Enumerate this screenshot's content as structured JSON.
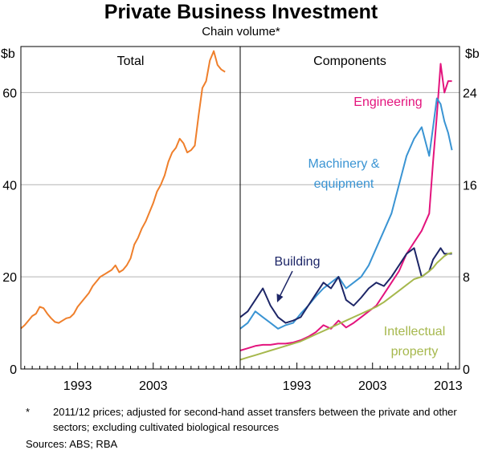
{
  "title": "Private Business Investment",
  "subtitle": "Chain volume*",
  "footnote_mark": "*",
  "footnote": "2011/12 prices; adjusted for second-hand asset transfers between the private and other sectors; excluding cultivated biological resources",
  "sources": "Sources:  ABS; RBA",
  "chart_data": [
    {
      "type": "line",
      "panel_title": "Total",
      "ylabel": "$b",
      "ylim": [
        0,
        70
      ],
      "yticks": [
        0,
        20,
        40,
        60
      ],
      "xlim": [
        1985.5,
        2014.5
      ],
      "xticks": [
        1993,
        2003
      ],
      "xtick_labels": [
        "1993",
        "2003"
      ],
      "grid": true,
      "series": [
        {
          "name": "Total",
          "color": "#ef7f2b",
          "x": [
            1985.5,
            1986,
            1986.5,
            1987,
            1987.5,
            1988,
            1988.5,
            1989,
            1989.5,
            1990,
            1990.5,
            1991,
            1991.5,
            1992,
            1992.5,
            1993,
            1993.5,
            1994,
            1994.5,
            1995,
            1995.5,
            1996,
            1996.5,
            1997,
            1997.5,
            1998,
            1998.5,
            1999,
            1999.5,
            2000,
            2000.5,
            2001,
            2001.5,
            2002,
            2002.5,
            2003,
            2003.5,
            2004,
            2004.5,
            2005,
            2005.5,
            2006,
            2006.5,
            2007,
            2007.5,
            2008,
            2008.5,
            2009,
            2009.5,
            2010,
            2010.5,
            2011,
            2011.5,
            2012,
            2012.5,
            2013,
            2013.5
          ],
          "values": [
            8.8,
            9.5,
            10.5,
            11.5,
            12,
            13.5,
            13.2,
            12,
            11,
            10.2,
            10,
            10.5,
            11,
            11.2,
            12,
            13.5,
            14.5,
            15.5,
            16.5,
            18,
            19,
            20,
            20.5,
            21,
            21.5,
            22.5,
            21,
            21.5,
            22.5,
            24,
            27,
            28.5,
            30.5,
            32,
            34,
            36,
            38.5,
            40,
            42,
            45,
            47,
            48,
            50,
            49,
            47,
            47.5,
            48.5,
            55,
            61,
            62.5,
            67,
            69,
            66,
            65,
            64.5,
            null,
            null
          ]
        }
      ]
    },
    {
      "type": "line",
      "panel_title": "Components",
      "ylabel": "$b",
      "ylim": [
        0,
        28
      ],
      "yticks": [
        0,
        8,
        16,
        24
      ],
      "xlim": [
        1985.5,
        2014.5
      ],
      "xticks": [
        1993,
        2003,
        2013
      ],
      "xtick_labels": [
        "1993",
        "2003",
        "2013"
      ],
      "grid": true,
      "series": [
        {
          "name": "Engineering",
          "color": "#e3147d",
          "x": [
            1985.5,
            1986.5,
            1987.5,
            1988.5,
            1989.5,
            1990.5,
            1991.5,
            1992.5,
            1993.5,
            1994.5,
            1995.5,
            1996.5,
            1997.5,
            1998.5,
            1999.5,
            2000.5,
            2001.5,
            2002.5,
            2003.5,
            2004.5,
            2005.5,
            2006.5,
            2007.5,
            2008.5,
            2009.5,
            2010.5,
            2011,
            2011.5,
            2012,
            2012.5,
            2013,
            2013.5
          ],
          "values": [
            1.6,
            1.8,
            2,
            2.1,
            2.1,
            2.2,
            2.2,
            2.3,
            2.5,
            2.8,
            3.2,
            3.8,
            3.5,
            4.2,
            3.6,
            4,
            4.5,
            5,
            5.5,
            6.5,
            7.5,
            8.5,
            10,
            11,
            12,
            13.5,
            18,
            22,
            26.5,
            24,
            25,
            25
          ]
        },
        {
          "name": "Machinery & equipment",
          "color": "#3a94d3",
          "x": [
            1985.5,
            1986.5,
            1987.5,
            1988.5,
            1989.5,
            1990.5,
            1991.5,
            1992.5,
            1993.5,
            1994.5,
            1995.5,
            1996.5,
            1997.5,
            1998.5,
            1999.5,
            2000.5,
            2001.5,
            2002.5,
            2003.5,
            2004.5,
            2005.5,
            2006.5,
            2007.5,
            2008.5,
            2009.5,
            2010.5,
            2011,
            2011.5,
            2012,
            2012.5,
            2013,
            2013.5
          ],
          "values": [
            3.5,
            4,
            5,
            4.5,
            4,
            3.5,
            3.8,
            4,
            4.8,
            5.5,
            6.3,
            7,
            7.5,
            8,
            7,
            7.5,
            8,
            9,
            10.5,
            12,
            13.5,
            16,
            18.5,
            20,
            21,
            18.5,
            21,
            23.5,
            23,
            21.5,
            20.5,
            19
          ]
        },
        {
          "name": "Building",
          "color": "#1d2667",
          "x": [
            1985.5,
            1986.5,
            1987.5,
            1988.5,
            1989.5,
            1990.5,
            1991.5,
            1992.5,
            1993.5,
            1994.5,
            1995.5,
            1996.5,
            1997.5,
            1998.5,
            1999.5,
            2000.5,
            2001.5,
            2002.5,
            2003.5,
            2004.5,
            2005.5,
            2006.5,
            2007.5,
            2008.5,
            2009.5,
            2010.5,
            2011,
            2011.5,
            2012,
            2012.5,
            2013,
            2013.5
          ],
          "values": [
            4.5,
            5,
            6,
            7,
            5.5,
            4.5,
            4,
            4.2,
            4.5,
            5.5,
            6.5,
            7.5,
            7,
            8,
            6,
            5.5,
            6.2,
            7,
            7.5,
            7.2,
            8,
            9,
            10,
            10.5,
            8,
            8.5,
            9.5,
            10,
            10.5,
            10,
            10,
            10
          ]
        },
        {
          "name": "Intellectual property",
          "color": "#a6b84d",
          "x": [
            1985.5,
            1986.5,
            1987.5,
            1988.5,
            1989.5,
            1990.5,
            1991.5,
            1992.5,
            1993.5,
            1994.5,
            1995.5,
            1996.5,
            1997.5,
            1998.5,
            1999.5,
            2000.5,
            2001.5,
            2002.5,
            2003.5,
            2004.5,
            2005.5,
            2006.5,
            2007.5,
            2008.5,
            2009.5,
            2010.5,
            2011,
            2011.5,
            2012,
            2012.5,
            2013,
            2013.5
          ],
          "values": [
            0.8,
            1,
            1.2,
            1.4,
            1.6,
            1.8,
            2,
            2.2,
            2.4,
            2.7,
            3,
            3.3,
            3.6,
            3.9,
            4.2,
            4.5,
            4.8,
            5.1,
            5.4,
            5.8,
            6.3,
            6.8,
            7.3,
            7.8,
            8,
            8.5,
            8.8,
            9.2,
            9.5,
            9.8,
            10,
            10.1
          ]
        }
      ],
      "annotations": [
        {
          "text": "Engineering",
          "series": "Engineering"
        },
        {
          "text": "Machinery &",
          "series": "Machinery & equipment"
        },
        {
          "text": "equipment",
          "series": "Machinery & equipment"
        },
        {
          "text": "Building",
          "series": "Building"
        },
        {
          "text": "Intellectual",
          "series": "Intellectual property"
        },
        {
          "text": "property",
          "series": "Intellectual property"
        }
      ]
    }
  ]
}
